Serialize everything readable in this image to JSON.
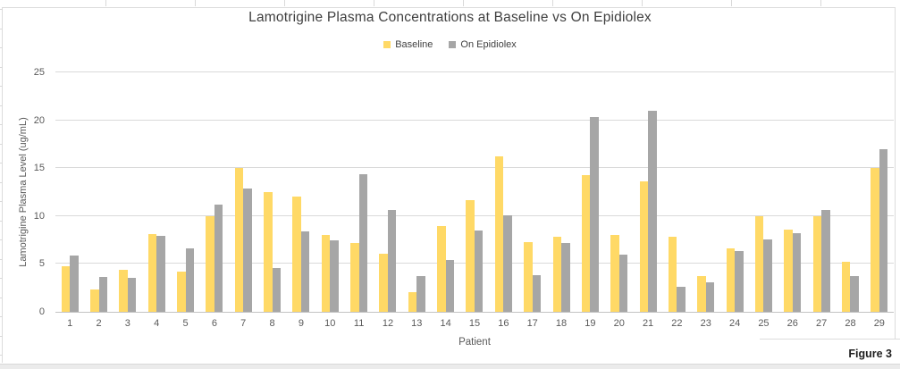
{
  "figure_label": "Figure 3",
  "chart_data": {
    "type": "bar",
    "title": "Lamotrigine Plasma Concentrations at Baseline vs On Epidiolex",
    "xlabel": "Patient",
    "ylabel": "Lamotrigine Plasma Level (ug/mL)",
    "ylim": [
      0,
      25
    ],
    "yticks": [
      0,
      5,
      10,
      15,
      20,
      25
    ],
    "grid": "horizontal",
    "legend_position": "top",
    "categories": [
      "1",
      "2",
      "3",
      "4",
      "5",
      "6",
      "7",
      "8",
      "9",
      "10",
      "11",
      "12",
      "13",
      "14",
      "15",
      "16",
      "17",
      "18",
      "19",
      "20",
      "21",
      "22",
      "23",
      "24",
      "25",
      "26",
      "27",
      "28",
      "29"
    ],
    "series": [
      {
        "name": "Baseline",
        "color": "#FFD966",
        "values": [
          4.8,
          2.3,
          4.4,
          8.1,
          4.2,
          10.0,
          15.0,
          12.5,
          12.0,
          8.0,
          7.2,
          6.1,
          2.1,
          9.0,
          11.7,
          16.2,
          7.3,
          7.8,
          14.3,
          8.0,
          13.6,
          7.8,
          3.7,
          6.6,
          10.0,
          8.6,
          10.0,
          5.2,
          15.0
        ]
      },
      {
        "name": "On Epidiolex",
        "color": "#A6A6A6",
        "values": [
          5.9,
          3.6,
          3.5,
          7.9,
          6.6,
          11.2,
          12.9,
          4.6,
          8.4,
          7.5,
          14.4,
          10.6,
          3.7,
          5.4,
          8.5,
          10.1,
          3.8,
          7.2,
          20.3,
          6.0,
          21.0,
          2.6,
          3.1,
          6.3,
          7.6,
          8.2,
          10.6,
          3.7,
          17.0
        ]
      }
    ],
    "colors": {
      "gridline": "#d9d9d9",
      "axis_line": "#c3c3c3",
      "tick_text": "#595959",
      "title_text": "#3f3f3f"
    }
  }
}
